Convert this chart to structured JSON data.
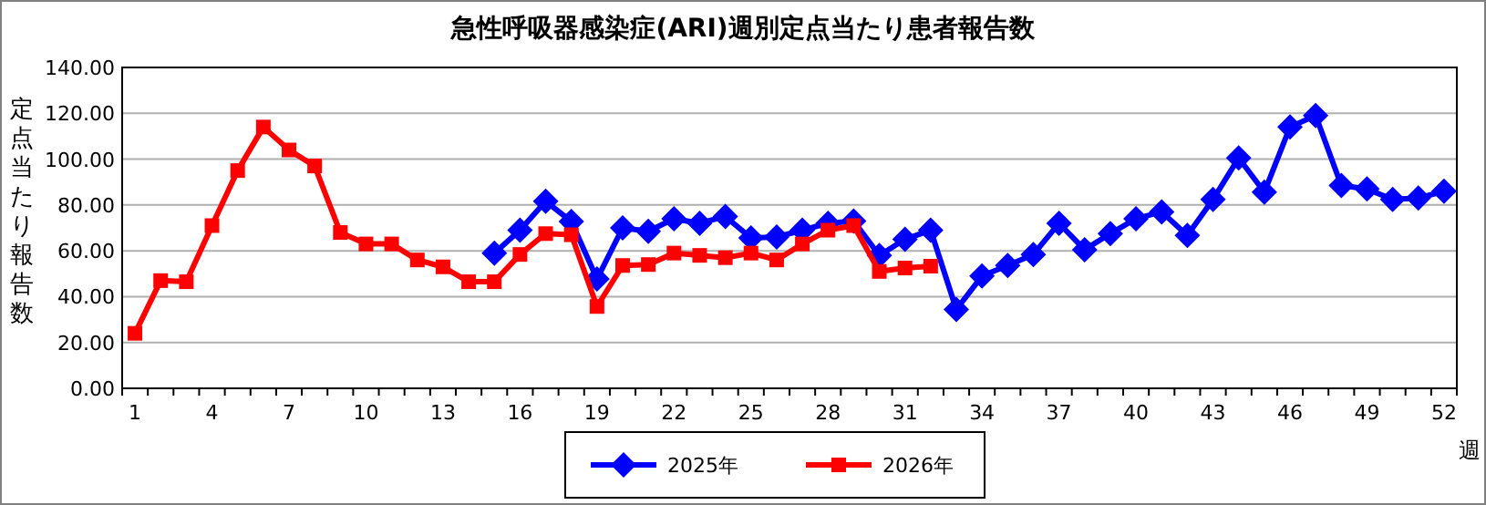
{
  "chart_data": {
    "type": "line",
    "title": "急性呼吸器感染症(ARI)週別定点当たり患者報告数",
    "xlabel": "週",
    "ylabel": "定点当たり報告数",
    "categories": [
      "1",
      null,
      null,
      "4",
      null,
      null,
      "7",
      null,
      null,
      "10",
      null,
      null,
      "13",
      null,
      null,
      "16",
      null,
      null,
      "19",
      null,
      null,
      "22",
      null,
      null,
      "25",
      null,
      null,
      "28",
      null,
      null,
      "31",
      null,
      null,
      "34",
      null,
      null,
      "37",
      null,
      null,
      "40",
      null,
      null,
      "43",
      null,
      null,
      "46",
      null,
      null,
      "49",
      null,
      null,
      "52"
    ],
    "ylim": [
      0,
      140
    ],
    "yticks": [
      {
        "value": 0,
        "label": "0.00"
      },
      {
        "value": 20,
        "label": "20.00"
      },
      {
        "value": 40,
        "label": "40.00"
      },
      {
        "value": 60,
        "label": "60.00"
      },
      {
        "value": 80,
        "label": "80.00"
      },
      {
        "value": 100,
        "label": "100.00"
      },
      {
        "value": 120,
        "label": "120.00"
      },
      {
        "value": 140,
        "label": "140.00"
      }
    ],
    "grid": "y",
    "legend": "bottom",
    "series": [
      {
        "name": "2025年",
        "color": "#0000ff",
        "marker": "diamond",
        "values": [
          null,
          null,
          null,
          null,
          null,
          null,
          null,
          null,
          null,
          null,
          null,
          null,
          null,
          null,
          59,
          69,
          81.6,
          72.8,
          47.7,
          70,
          68.5,
          74,
          72,
          75,
          65.6,
          66,
          69,
          72,
          73,
          58,
          65,
          69,
          34.4,
          49,
          53.6,
          58.4,
          72,
          60.5,
          67.5,
          74,
          77,
          66.7,
          82.4,
          100.5,
          85.6,
          114,
          119,
          88.5,
          87,
          82.4,
          83,
          86
        ]
      },
      {
        "name": "2026年",
        "color": "#ff0000",
        "marker": "square",
        "values": [
          24,
          47,
          46.5,
          71,
          95,
          114,
          104,
          97,
          68,
          63,
          63,
          56,
          53,
          46.5,
          46.5,
          58.4,
          67.5,
          67,
          35.7,
          53.6,
          54,
          59,
          58,
          57,
          59,
          56,
          63,
          69,
          71,
          51,
          52.5,
          53.3,
          null,
          null,
          null,
          null,
          null,
          null,
          null,
          null,
          null,
          null,
          null,
          null,
          null,
          null,
          null,
          null,
          null,
          null,
          null,
          null
        ]
      }
    ]
  }
}
